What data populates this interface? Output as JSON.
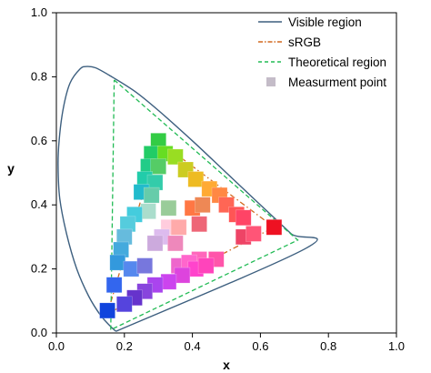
{
  "chart_data": {
    "type": "scatter",
    "xlabel": "x",
    "ylabel": "y",
    "xlim": [
      0.0,
      1.0
    ],
    "ylim": [
      0.0,
      1.0
    ],
    "xticks": [
      "0.0",
      "0.2",
      "0.4",
      "0.6",
      "0.8",
      "1.0"
    ],
    "yticks": [
      "0.0",
      "0.2",
      "0.4",
      "0.6",
      "0.8",
      "1.0"
    ],
    "grid": false,
    "legend_position": "top-right",
    "series": [
      {
        "name": "Visible region",
        "style": "solid-line",
        "color": "#3d5f7f",
        "points": [
          [
            0.175,
            0.005
          ],
          [
            0.16,
            0.02
          ],
          [
            0.13,
            0.055
          ],
          [
            0.095,
            0.115
          ],
          [
            0.06,
            0.2
          ],
          [
            0.03,
            0.31
          ],
          [
            0.01,
            0.42
          ],
          [
            0.005,
            0.52
          ],
          [
            0.008,
            0.6
          ],
          [
            0.02,
            0.7
          ],
          [
            0.04,
            0.78
          ],
          [
            0.07,
            0.825
          ],
          [
            0.09,
            0.832
          ],
          [
            0.115,
            0.828
          ],
          [
            0.155,
            0.805
          ],
          [
            0.23,
            0.755
          ],
          [
            0.3,
            0.695
          ],
          [
            0.4,
            0.6
          ],
          [
            0.5,
            0.5
          ],
          [
            0.6,
            0.4
          ],
          [
            0.69,
            0.31
          ],
          [
            0.735,
            0.265
          ],
          [
            0.175,
            0.005
          ]
        ]
      },
      {
        "name": "sRGB",
        "style": "dash-dot",
        "color": "#d2691e",
        "points": [
          [
            0.64,
            0.33
          ],
          [
            0.3,
            0.6
          ],
          [
            0.15,
            0.06
          ],
          [
            0.64,
            0.33
          ]
        ]
      },
      {
        "name": "Theoretical region",
        "style": "dashed",
        "color": "#22bb55",
        "points": [
          [
            0.17,
            0.79
          ],
          [
            0.71,
            0.29
          ],
          [
            0.16,
            0.01
          ],
          [
            0.17,
            0.79
          ]
        ]
      },
      {
        "name": "Measurment point",
        "style": "square-marker",
        "color": "#c4bcc8",
        "points": [
          [
            0.3,
            0.6,
            "#33cc44"
          ],
          [
            0.28,
            0.56,
            "#22cc66"
          ],
          [
            0.32,
            0.56,
            "#66dd22"
          ],
          [
            0.35,
            0.55,
            "#99dd22"
          ],
          [
            0.27,
            0.52,
            "#22cc88"
          ],
          [
            0.3,
            0.52,
            "#55cc66"
          ],
          [
            0.38,
            0.51,
            "#cccc22"
          ],
          [
            0.41,
            0.48,
            "#eebb22"
          ],
          [
            0.26,
            0.48,
            "#22ccaa"
          ],
          [
            0.29,
            0.47,
            "#33ccaa"
          ],
          [
            0.45,
            0.45,
            "#ffaa33"
          ],
          [
            0.25,
            0.44,
            "#22bbcc"
          ],
          [
            0.28,
            0.43,
            "#66ccaa"
          ],
          [
            0.48,
            0.43,
            "#ff8844"
          ],
          [
            0.33,
            0.39,
            "#99cc99"
          ],
          [
            0.4,
            0.39,
            "#ff7744"
          ],
          [
            0.43,
            0.4,
            "#ee8855"
          ],
          [
            0.5,
            0.4,
            "#ff6655"
          ],
          [
            0.27,
            0.38,
            "#aaddcc"
          ],
          [
            0.23,
            0.37,
            "#44ccdd"
          ],
          [
            0.53,
            0.37,
            "#ff5555"
          ],
          [
            0.55,
            0.36,
            "#ff4466"
          ],
          [
            0.33,
            0.33,
            "#ffccdd"
          ],
          [
            0.42,
            0.34,
            "#ee6677"
          ],
          [
            0.21,
            0.34,
            "#55ccdd"
          ],
          [
            0.36,
            0.33,
            "#ffaaaa"
          ],
          [
            0.31,
            0.3,
            "#ddbbee"
          ],
          [
            0.35,
            0.28,
            "#ee88bb"
          ],
          [
            0.2,
            0.3,
            "#66bbdd"
          ],
          [
            0.29,
            0.28,
            "#ccaadd"
          ],
          [
            0.55,
            0.3,
            "#ee4466"
          ],
          [
            0.58,
            0.31,
            "#ff5577"
          ],
          [
            0.64,
            0.33,
            "#ee1122"
          ],
          [
            0.19,
            0.26,
            "#44aadd"
          ],
          [
            0.42,
            0.23,
            "#ff66bb"
          ],
          [
            0.47,
            0.23,
            "#ff55aa"
          ],
          [
            0.18,
            0.22,
            "#3399dd"
          ],
          [
            0.22,
            0.2,
            "#5588ee"
          ],
          [
            0.26,
            0.21,
            "#7777dd"
          ],
          [
            0.36,
            0.21,
            "#ee66cc"
          ],
          [
            0.39,
            0.22,
            "#ff66cc"
          ],
          [
            0.41,
            0.2,
            "#ff44cc"
          ],
          [
            0.44,
            0.21,
            "#ff44bb"
          ],
          [
            0.37,
            0.18,
            "#dd44dd"
          ],
          [
            0.33,
            0.16,
            "#cc44ee"
          ],
          [
            0.29,
            0.15,
            "#aa44ee"
          ],
          [
            0.26,
            0.13,
            "#8844dd"
          ],
          [
            0.23,
            0.11,
            "#6633cc"
          ],
          [
            0.2,
            0.09,
            "#5544dd"
          ],
          [
            0.17,
            0.15,
            "#3366ee"
          ],
          [
            0.15,
            0.07,
            "#1144dd"
          ]
        ]
      }
    ]
  }
}
